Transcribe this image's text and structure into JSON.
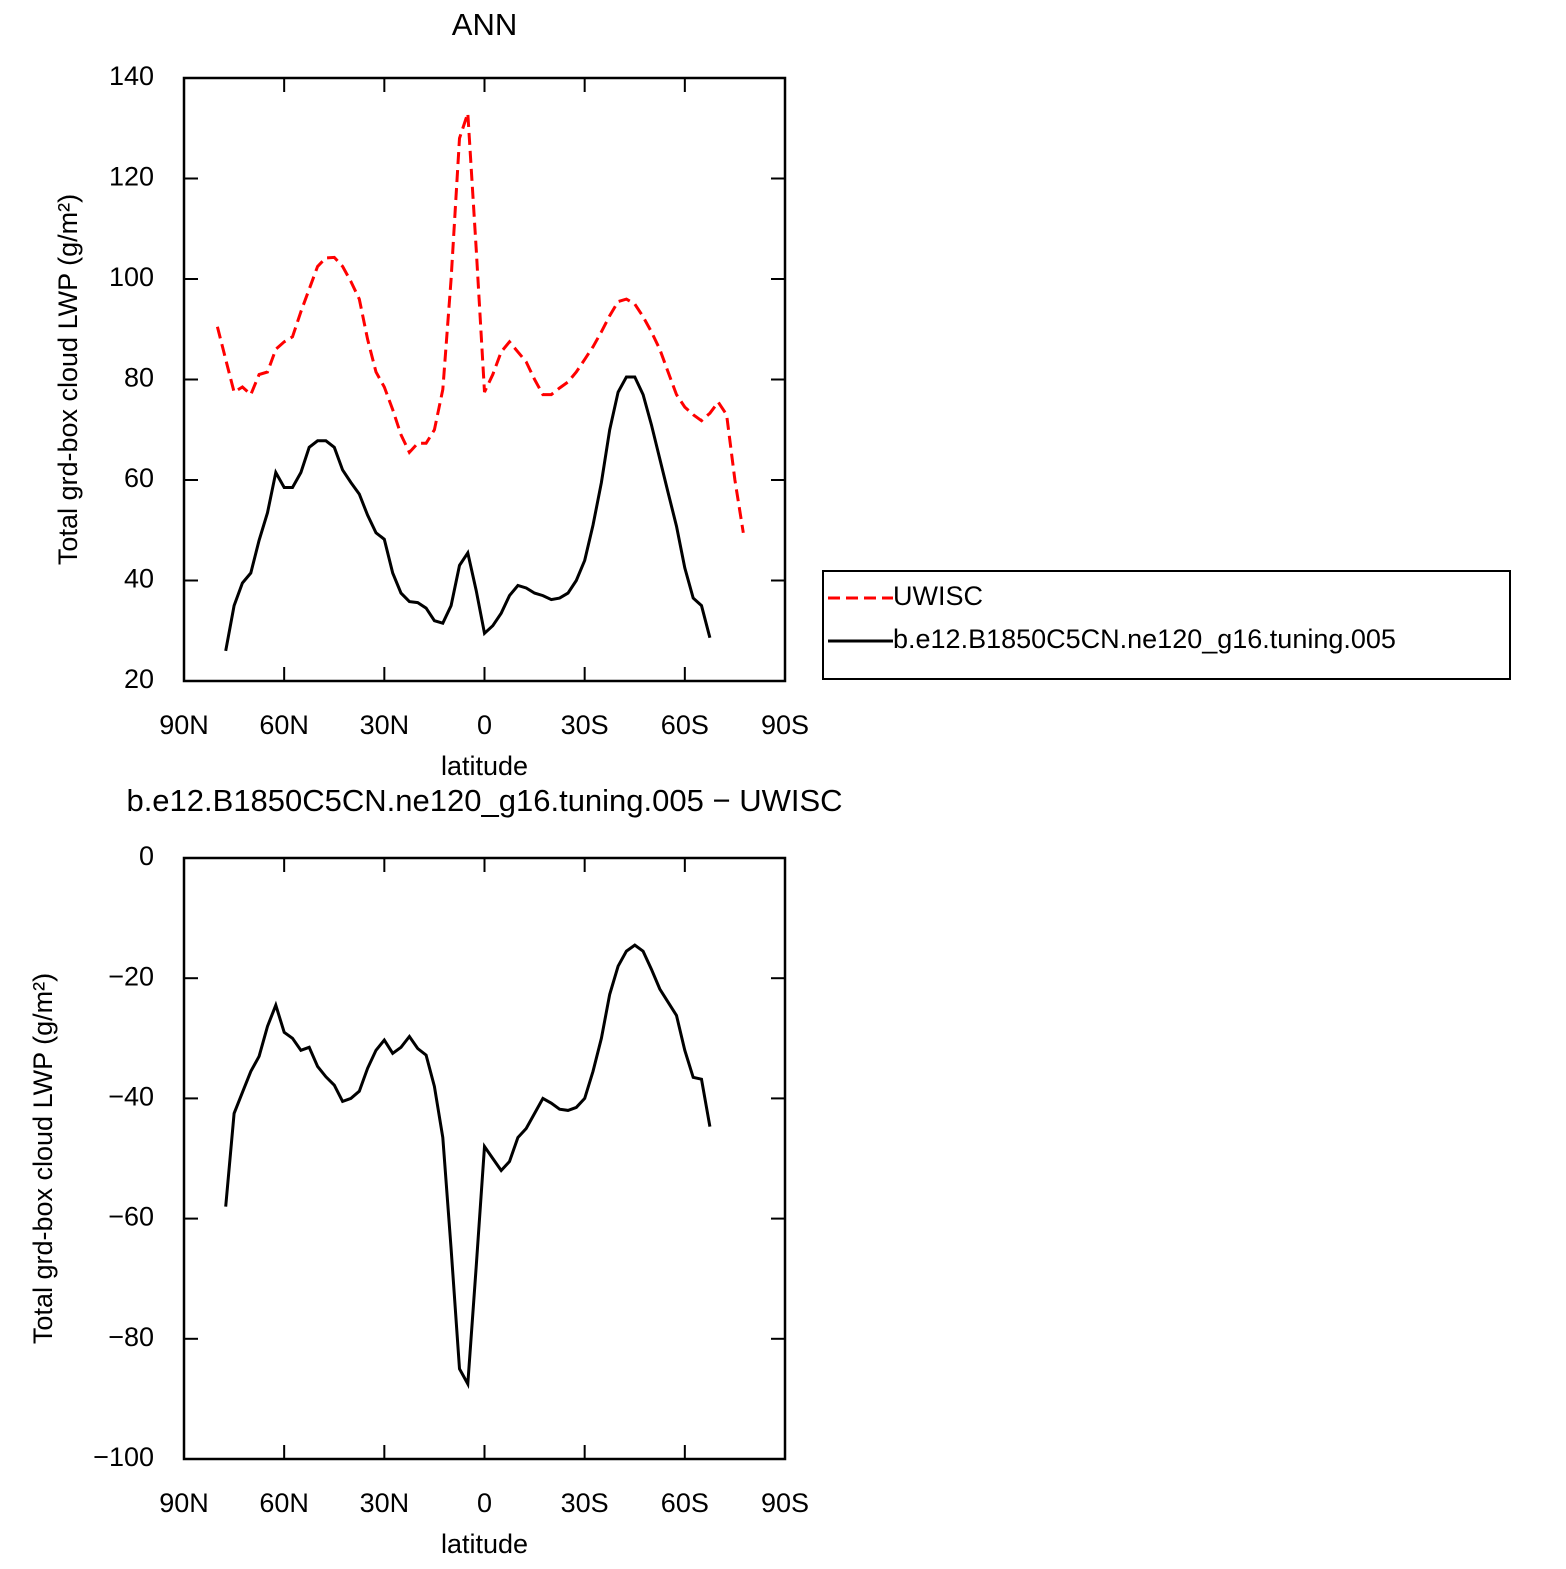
{
  "chart_data": [
    {
      "type": "line",
      "title": "ANN",
      "xlabel": "latitude",
      "ylabel": "Total grd-box cloud LWP (g/m²)",
      "x": [
        80,
        77.5,
        75,
        72.5,
        70,
        67.5,
        65,
        62.5,
        60,
        57.5,
        55,
        52.5,
        50,
        47.5,
        45,
        42.5,
        40,
        37.5,
        35,
        32.5,
        30,
        27.5,
        25,
        22.5,
        20,
        17.5,
        15,
        12.5,
        10,
        7.5,
        5,
        2.5,
        0,
        -2.5,
        -5,
        -7.5,
        -10,
        -12.5,
        -15,
        -17.5,
        -20,
        -22.5,
        -25,
        -27.5,
        -30,
        -32.5,
        -35,
        -37.5,
        -40,
        -42.5,
        -45,
        -47.5,
        -50,
        -52.5,
        -55,
        -57.5,
        -60,
        -62.5,
        -65,
        -67.5,
        -70,
        -72.5,
        -75,
        -77.5
      ],
      "series": [
        {
          "name": "UWISC",
          "color": "#ff0000",
          "style": "dashed",
          "values": [
            90.5,
            84,
            77.5,
            78.5,
            77,
            81,
            81.5,
            86,
            87.5,
            88.5,
            93.5,
            98,
            102.5,
            104.2,
            104.3,
            102.5,
            99.5,
            96,
            88,
            81.5,
            78.5,
            74,
            69,
            65.5,
            67.3,
            67.3,
            70,
            78,
            100,
            128,
            133,
            106,
            77.5,
            81,
            85.5,
            87.5,
            85.5,
            83.5,
            80,
            77,
            77,
            78.3,
            79.5,
            81.5,
            84,
            86.5,
            89.5,
            92.7,
            95.5,
            96,
            95,
            92.5,
            89.5,
            86,
            81.5,
            77,
            74.5,
            73,
            71.8,
            73.3,
            75.5,
            73,
            60,
            49.5
          ]
        },
        {
          "name": "b.e12.B1850C5CN.ne120_g16.tuning.005",
          "color": "#000000",
          "style": "solid",
          "values": [
            null,
            26,
            35,
            39.5,
            41.5,
            48,
            53.5,
            61.5,
            58.5,
            58.5,
            61.5,
            66.5,
            67.8,
            67.8,
            66.5,
            62,
            59.5,
            57.2,
            53,
            49.5,
            48.2,
            41.5,
            37.5,
            35.8,
            35.6,
            34.5,
            32,
            31.5,
            35,
            43,
            45.5,
            38,
            29.5,
            31,
            33.5,
            37,
            39,
            38.5,
            37.5,
            37,
            36.2,
            36.5,
            37.5,
            40,
            44,
            51,
            59.5,
            70,
            77.5,
            80.5,
            80.5,
            77,
            71,
            64.2,
            57.5,
            50.8,
            42.5,
            36.5,
            35,
            28.6,
            null,
            null,
            null,
            null
          ]
        }
      ],
      "xlim": [
        90,
        -90
      ],
      "xticks": [
        {
          "value": 90,
          "label": "90N"
        },
        {
          "value": 60,
          "label": "60N"
        },
        {
          "value": 30,
          "label": "30N"
        },
        0,
        {
          "value": -30,
          "label": "30S"
        },
        {
          "value": -60,
          "label": "60S"
        },
        {
          "value": -90,
          "label": "90S"
        }
      ],
      "ylim": [
        20,
        140
      ],
      "yticks": [
        20,
        40,
        60,
        80,
        100,
        120,
        140
      ],
      "legend": "right"
    },
    {
      "type": "line",
      "title": "b.e12.B1850C5CN.ne120_g16.tuning.005 − UWISC",
      "xlabel": "latitude",
      "ylabel": "Total grd-box cloud LWP (g/m²)",
      "x": [
        80,
        77.5,
        75,
        72.5,
        70,
        67.5,
        65,
        62.5,
        60,
        57.5,
        55,
        52.5,
        50,
        47.5,
        45,
        42.5,
        40,
        37.5,
        35,
        32.5,
        30,
        27.5,
        25,
        22.5,
        20,
        17.5,
        15,
        12.5,
        10,
        7.5,
        5,
        2.5,
        0,
        -2.5,
        -5,
        -7.5,
        -10,
        -12.5,
        -15,
        -17.5,
        -20,
        -22.5,
        -25,
        -27.5,
        -30,
        -32.5,
        -35,
        -37.5,
        -40,
        -42.5,
        -45,
        -47.5,
        -50,
        -52.5,
        -55,
        -57.5,
        -60,
        -62.5,
        -65,
        -67.5,
        -70,
        -72.5,
        -75,
        -77.5
      ],
      "series": [
        {
          "color": "#000000",
          "style": "solid",
          "values": [
            null,
            -58,
            -42.5,
            -39,
            -35.5,
            -33,
            -28,
            -24.5,
            -29,
            -30,
            -32,
            -31.5,
            -34.7,
            -36.4,
            -37.8,
            -40.5,
            -40,
            -38.8,
            -35,
            -32,
            -30.3,
            -32.5,
            -31.5,
            -29.7,
            -31.7,
            -32.8,
            -38,
            -46.5,
            -65,
            -85,
            -87.5,
            -68,
            -48,
            -50,
            -52,
            -50.5,
            -46.5,
            -45,
            -42.5,
            -40,
            -40.8,
            -41.8,
            -42,
            -41.5,
            -40,
            -35.5,
            -30,
            -22.7,
            -18,
            -15.5,
            -14.5,
            -15.5,
            -18.5,
            -21.8,
            -24,
            -26.2,
            -32,
            -36.5,
            -36.8,
            -44.7,
            null,
            null,
            null,
            null
          ]
        }
      ],
      "xlim": [
        90,
        -90
      ],
      "xticks": [
        {
          "value": 90,
          "label": "90N"
        },
        {
          "value": 60,
          "label": "60N"
        },
        {
          "value": 30,
          "label": "30N"
        },
        0,
        {
          "value": -30,
          "label": "30S"
        },
        {
          "value": -60,
          "label": "60S"
        },
        {
          "value": -90,
          "label": "90S"
        }
      ],
      "ylim": [
        -100,
        0
      ],
      "yticks": [
        {
          "value": -100,
          "label": "−100"
        },
        {
          "value": -80,
          "label": "−80"
        },
        {
          "value": -60,
          "label": "−60"
        },
        {
          "value": -40,
          "label": "−40"
        },
        {
          "value": -20,
          "label": "−20"
        },
        0
      ]
    }
  ]
}
